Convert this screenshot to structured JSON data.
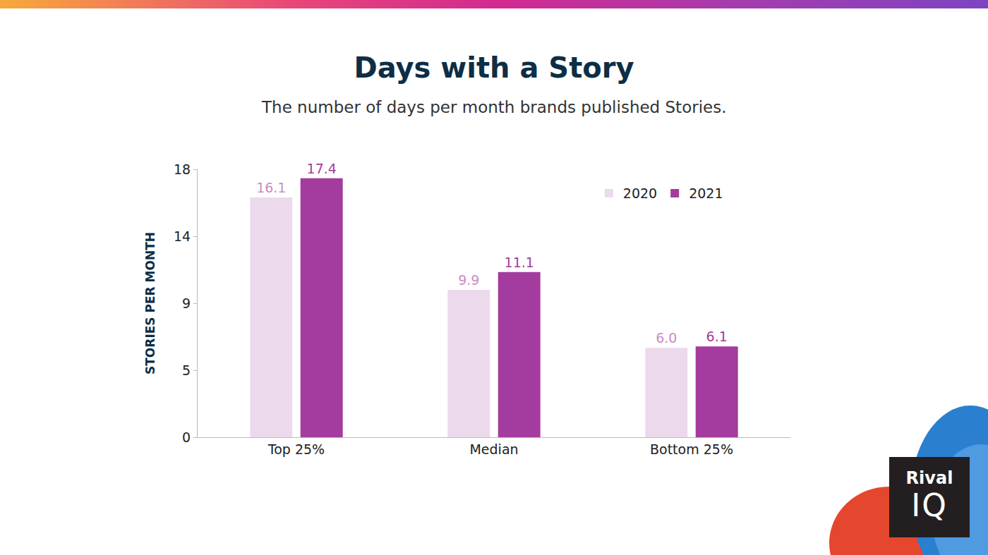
{
  "chart_data": {
    "type": "bar",
    "title": "Days with a Story",
    "subtitle": "The number of days per month brands published Stories.",
    "y_label": "STORIES PER MONTH",
    "categories": [
      "Top 25%",
      "Median",
      "Bottom 25%"
    ],
    "series": [
      {
        "name": "2020",
        "color": "#ecdaec",
        "values": [
          16.1,
          9.9,
          6.0
        ],
        "value_labels": [
          "16.1",
          "9.9",
          "6.0"
        ]
      },
      {
        "name": "2021",
        "color": "#a33c9e",
        "values": [
          17.4,
          11.1,
          6.1
        ]
      }
    ],
    "ylim": [
      0,
      18
    ],
    "yticks": [
      0,
      {
        "value": 4.5,
        "label": "5"
      },
      9,
      {
        "value": 13.5,
        "label": "14"
      },
      18
    ],
    "grid": false,
    "legend": "top right",
    "data_labels": true,
    "logo_text": [
      "Rival",
      "IQ"
    ]
  }
}
